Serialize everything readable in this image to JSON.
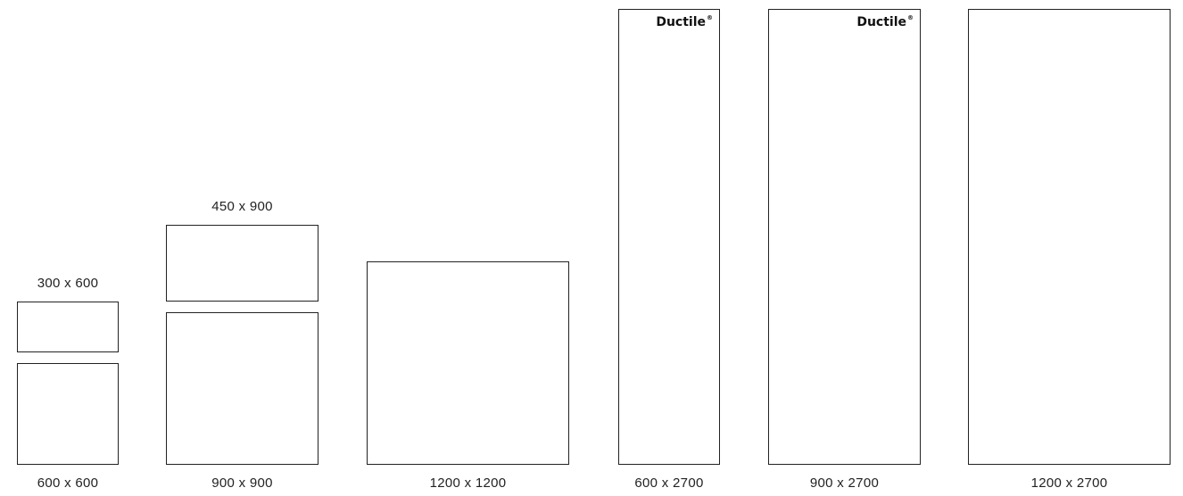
{
  "tiles": {
    "t300x600": {
      "label": "300 x 600"
    },
    "t600x600": {
      "label": "600 x 600"
    },
    "t450x900": {
      "label": "450 x 900"
    },
    "t900x900": {
      "label": "900 x 900"
    },
    "t1200x1200": {
      "label": "1200 x 1200"
    },
    "t600x2700": {
      "label": "600 x 2700",
      "brand": "Ductile",
      "brand_mark": "®"
    },
    "t900x2700": {
      "label": "900 x 2700",
      "brand": "Ductile",
      "brand_mark": "®"
    },
    "t1200x2700": {
      "label": "1200 x 2700"
    }
  }
}
